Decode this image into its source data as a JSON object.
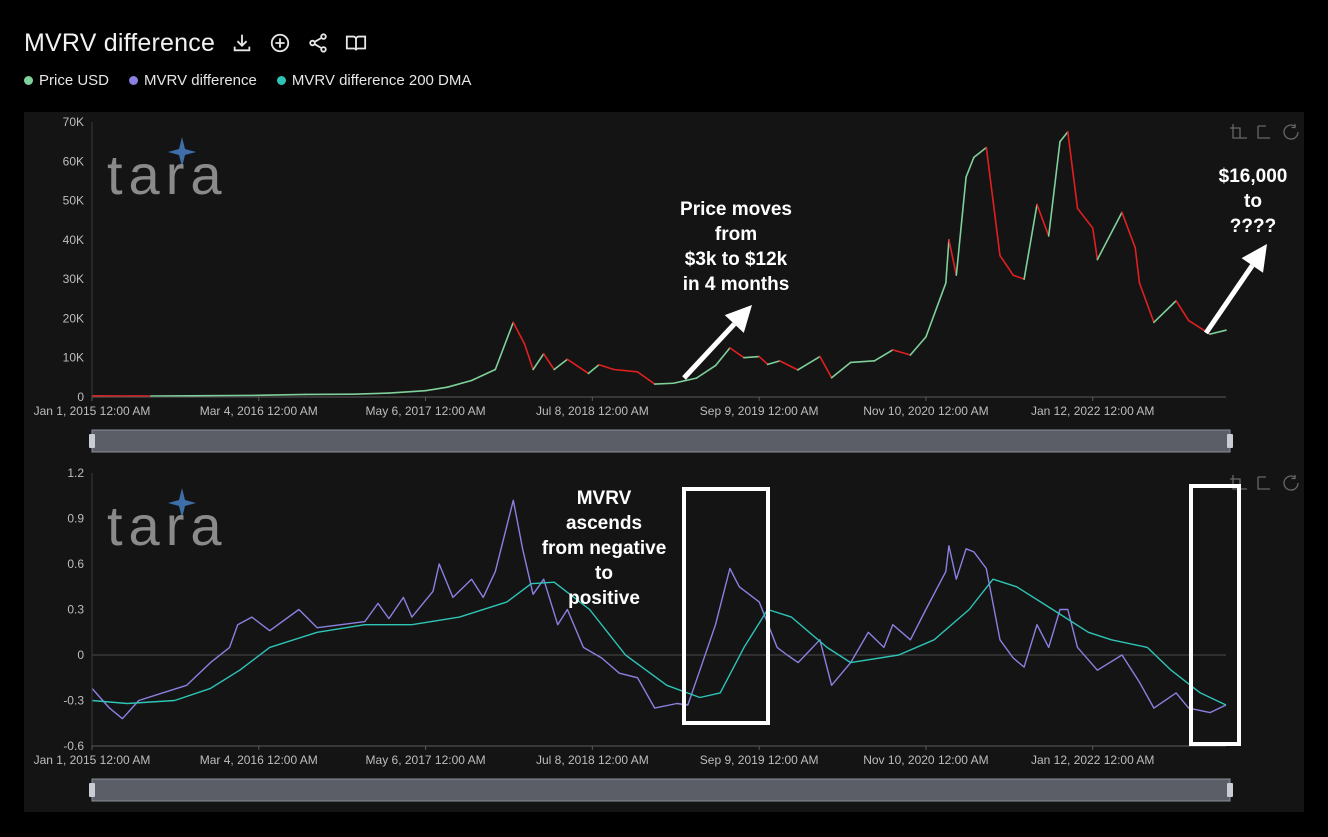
{
  "header": {
    "title": "MVRV difference",
    "tools": [
      {
        "icon": "download-icon"
      },
      {
        "icon": "add-circle-icon"
      },
      {
        "icon": "share-icon"
      },
      {
        "icon": "book-icon"
      }
    ]
  },
  "legend": [
    {
      "label": "Price USD",
      "color": "#7fd09a"
    },
    {
      "label": "MVRV difference",
      "color": "#8a80e0"
    },
    {
      "label": "MVRV difference 200 DMA",
      "color": "#2ec4b6"
    }
  ],
  "watermark": "tara",
  "annotations": {
    "price_move": [
      "Price moves",
      "from",
      "$3k to $12k",
      "in 4 months"
    ],
    "future": [
      "$16,000",
      "to",
      "????"
    ],
    "mvrv": [
      "MVRV",
      "ascends",
      "from negative",
      "to",
      "positive"
    ]
  },
  "chart_data": [
    {
      "type": "line",
      "title": "",
      "ylim": [
        0,
        70000
      ],
      "y_ticks": [
        0,
        10000,
        20000,
        30000,
        40000,
        50000,
        60000,
        70000
      ],
      "y_tick_labels": [
        "0",
        "10K",
        "20K",
        "30K",
        "40K",
        "50K",
        "60K",
        "70K"
      ],
      "x_tick_labels": [
        "Jan 1, 2015 12:00 AM",
        "Mar 4, 2016 12:00 AM",
        "May 6, 2017 12:00 AM",
        "Jul 8, 2018 12:00 AM",
        "Sep 9, 2019 12:00 AM",
        "Nov 10, 2020 12:00 AM",
        "Jan 12, 2022 12:00 AM"
      ],
      "x_tick_dates": [
        "2015-01-01",
        "2016-03-04",
        "2017-05-06",
        "2018-07-08",
        "2019-09-09",
        "2020-11-10",
        "2022-01-12"
      ],
      "x_range": [
        "2015-01-01",
        "2022-12-20"
      ],
      "series": [
        {
          "name": "Price USD",
          "colors": {
            "rising": "#7fd09a",
            "falling": "#e02020"
          },
          "points": [
            [
              "2015-01-01",
              300
            ],
            [
              "2015-06-01",
              230
            ],
            [
              "2015-11-01",
              350
            ],
            [
              "2016-03-01",
              420
            ],
            [
              "2016-07-01",
              650
            ],
            [
              "2016-11-01",
              720
            ],
            [
              "2017-02-01",
              1000
            ],
            [
              "2017-05-06",
              1600
            ],
            [
              "2017-07-01",
              2500
            ],
            [
              "2017-09-01",
              4200
            ],
            [
              "2017-11-01",
              7000
            ],
            [
              "2017-12-17",
              19000
            ],
            [
              "2018-01-15",
              13500
            ],
            [
              "2018-02-06",
              7000
            ],
            [
              "2018-03-05",
              11000
            ],
            [
              "2018-04-01",
              7000
            ],
            [
              "2018-05-05",
              9600
            ],
            [
              "2018-06-28",
              6000
            ],
            [
              "2018-07-25",
              8200
            ],
            [
              "2018-09-01",
              7000
            ],
            [
              "2018-11-01",
              6400
            ],
            [
              "2018-12-15",
              3300
            ],
            [
              "2019-02-01",
              3500
            ],
            [
              "2019-04-01",
              4800
            ],
            [
              "2019-05-20",
              8000
            ],
            [
              "2019-06-26",
              12500
            ],
            [
              "2019-08-01",
              10000
            ],
            [
              "2019-09-09",
              10300
            ],
            [
              "2019-10-01",
              8300
            ],
            [
              "2019-11-01",
              9200
            ],
            [
              "2019-12-17",
              6900
            ],
            [
              "2020-02-12",
              10300
            ],
            [
              "2020-03-13",
              4900
            ],
            [
              "2020-05-01",
              8800
            ],
            [
              "2020-07-01",
              9200
            ],
            [
              "2020-08-17",
              12000
            ],
            [
              "2020-10-01",
              10700
            ],
            [
              "2020-11-10",
              15300
            ],
            [
              "2020-12-31",
              29000
            ],
            [
              "2021-01-08",
              40000
            ],
            [
              "2021-01-27",
              31000
            ],
            [
              "2021-02-21",
              56000
            ],
            [
              "2021-03-13",
              61000
            ],
            [
              "2021-04-14",
              63500
            ],
            [
              "2021-05-19",
              36000
            ],
            [
              "2021-06-22",
              31000
            ],
            [
              "2021-07-20",
              30000
            ],
            [
              "2021-08-22",
              49000
            ],
            [
              "2021-09-21",
              41000
            ],
            [
              "2021-10-20",
              65000
            ],
            [
              "2021-11-09",
              67500
            ],
            [
              "2021-12-04",
              48000
            ],
            [
              "2022-01-12",
              43000
            ],
            [
              "2022-01-24",
              35000
            ],
            [
              "2022-03-28",
              47000
            ],
            [
              "2022-05-01",
              38000
            ],
            [
              "2022-05-12",
              29000
            ],
            [
              "2022-06-18",
              19000
            ],
            [
              "2022-08-14",
              24500
            ],
            [
              "2022-09-15",
              19500
            ],
            [
              "2022-11-09",
              16000
            ],
            [
              "2022-12-20",
              17000
            ]
          ]
        }
      ]
    },
    {
      "type": "line",
      "title": "",
      "ylim": [
        -0.6,
        1.2
      ],
      "y_ticks": [
        -0.6,
        -0.3,
        0,
        0.3,
        0.6,
        0.9,
        1.2
      ],
      "y_tick_labels": [
        "-0.6",
        "-0.3",
        "0",
        "0.3",
        "0.6",
        "0.9",
        "1.2"
      ],
      "x_tick_labels": [
        "Jan 1, 2015 12:00 AM",
        "Mar 4, 2016 12:00 AM",
        "May 6, 2017 12:00 AM",
        "Jul 8, 2018 12:00 AM",
        "Sep 9, 2019 12:00 AM",
        "Nov 10, 2020 12:00 AM",
        "Jan 12, 2022 12:00 AM"
      ],
      "x_tick_dates": [
        "2015-01-01",
        "2016-03-04",
        "2017-05-06",
        "2018-07-08",
        "2019-09-09",
        "2020-11-10",
        "2022-01-12"
      ],
      "x_range": [
        "2015-01-01",
        "2022-12-20"
      ],
      "series": [
        {
          "name": "MVRV difference",
          "color": "#8a80e0",
          "points": [
            [
              "2015-01-01",
              -0.22
            ],
            [
              "2015-02-15",
              -0.35
            ],
            [
              "2015-03-20",
              -0.42
            ],
            [
              "2015-05-01",
              -0.3
            ],
            [
              "2015-07-01",
              -0.25
            ],
            [
              "2015-09-01",
              -0.2
            ],
            [
              "2015-11-01",
              -0.05
            ],
            [
              "2015-12-20",
              0.05
            ],
            [
              "2016-01-10",
              0.2
            ],
            [
              "2016-02-15",
              0.25
            ],
            [
              "2016-04-01",
              0.16
            ],
            [
              "2016-06-15",
              0.3
            ],
            [
              "2016-08-01",
              0.18
            ],
            [
              "2016-10-01",
              0.2
            ],
            [
              "2016-12-01",
              0.22
            ],
            [
              "2017-01-04",
              0.34
            ],
            [
              "2017-02-01",
              0.24
            ],
            [
              "2017-03-10",
              0.38
            ],
            [
              "2017-04-01",
              0.25
            ],
            [
              "2017-05-25",
              0.42
            ],
            [
              "2017-06-10",
              0.6
            ],
            [
              "2017-07-15",
              0.38
            ],
            [
              "2017-09-01",
              0.5
            ],
            [
              "2017-10-01",
              0.38
            ],
            [
              "2017-11-01",
              0.55
            ],
            [
              "2017-12-17",
              1.02
            ],
            [
              "2018-01-10",
              0.7
            ],
            [
              "2018-02-06",
              0.4
            ],
            [
              "2018-03-05",
              0.5
            ],
            [
              "2018-04-10",
              0.2
            ],
            [
              "2018-05-05",
              0.3
            ],
            [
              "2018-06-15",
              0.05
            ],
            [
              "2018-08-01",
              -0.02
            ],
            [
              "2018-09-15",
              -0.12
            ],
            [
              "2018-11-01",
              -0.15
            ],
            [
              "2018-12-15",
              -0.35
            ],
            [
              "2019-02-10",
              -0.32
            ],
            [
              "2019-03-10",
              -0.33
            ],
            [
              "2019-04-10",
              -0.1
            ],
            [
              "2019-05-20",
              0.2
            ],
            [
              "2019-06-26",
              0.57
            ],
            [
              "2019-07-20",
              0.45
            ],
            [
              "2019-09-09",
              0.35
            ],
            [
              "2019-10-25",
              0.05
            ],
            [
              "2019-11-20",
              0.0
            ],
            [
              "2019-12-18",
              -0.05
            ],
            [
              "2020-02-12",
              0.1
            ],
            [
              "2020-03-13",
              -0.2
            ],
            [
              "2020-05-01",
              -0.05
            ],
            [
              "2020-06-15",
              0.15
            ],
            [
              "2020-07-25",
              0.05
            ],
            [
              "2020-08-17",
              0.2
            ],
            [
              "2020-10-01",
              0.1
            ],
            [
              "2020-11-10",
              0.3
            ],
            [
              "2020-12-31",
              0.55
            ],
            [
              "2021-01-08",
              0.72
            ],
            [
              "2021-01-27",
              0.5
            ],
            [
              "2021-02-21",
              0.7
            ],
            [
              "2021-03-13",
              0.68
            ],
            [
              "2021-04-14",
              0.57
            ],
            [
              "2021-05-19",
              0.1
            ],
            [
              "2021-06-22",
              -0.02
            ],
            [
              "2021-07-20",
              -0.08
            ],
            [
              "2021-08-22",
              0.2
            ],
            [
              "2021-09-21",
              0.05
            ],
            [
              "2021-10-20",
              0.3
            ],
            [
              "2021-11-09",
              0.3
            ],
            [
              "2021-12-04",
              0.05
            ],
            [
              "2022-01-24",
              -0.1
            ],
            [
              "2022-03-28",
              0.0
            ],
            [
              "2022-05-12",
              -0.18
            ],
            [
              "2022-06-18",
              -0.35
            ],
            [
              "2022-08-14",
              -0.25
            ],
            [
              "2022-09-15",
              -0.35
            ],
            [
              "2022-11-09",
              -0.38
            ],
            [
              "2022-12-20",
              -0.33
            ]
          ]
        },
        {
          "name": "MVRV difference 200 DMA",
          "color": "#2ec4b6",
          "points": [
            [
              "2015-01-01",
              -0.3
            ],
            [
              "2015-04-01",
              -0.32
            ],
            [
              "2015-08-01",
              -0.3
            ],
            [
              "2015-11-01",
              -0.22
            ],
            [
              "2016-01-15",
              -0.1
            ],
            [
              "2016-04-01",
              0.05
            ],
            [
              "2016-08-01",
              0.15
            ],
            [
              "2016-12-01",
              0.2
            ],
            [
              "2017-04-01",
              0.2
            ],
            [
              "2017-08-01",
              0.25
            ],
            [
              "2017-12-01",
              0.35
            ],
            [
              "2018-02-01",
              0.47
            ],
            [
              "2018-04-01",
              0.48
            ],
            [
              "2018-07-01",
              0.3
            ],
            [
              "2018-10-01",
              0.0
            ],
            [
              "2019-01-15",
              -0.2
            ],
            [
              "2019-04-10",
              -0.28
            ],
            [
              "2019-06-01",
              -0.25
            ],
            [
              "2019-08-01",
              0.05
            ],
            [
              "2019-10-01",
              0.3
            ],
            [
              "2019-12-01",
              0.25
            ],
            [
              "2020-03-01",
              0.05
            ],
            [
              "2020-05-01",
              -0.05
            ],
            [
              "2020-09-01",
              0.0
            ],
            [
              "2020-12-01",
              0.1
            ],
            [
              "2021-03-01",
              0.3
            ],
            [
              "2021-05-01",
              0.5
            ],
            [
              "2021-07-01",
              0.45
            ],
            [
              "2021-10-01",
              0.3
            ],
            [
              "2022-01-01",
              0.15
            ],
            [
              "2022-03-01",
              0.1
            ],
            [
              "2022-06-01",
              0.05
            ],
            [
              "2022-08-01",
              -0.1
            ],
            [
              "2022-10-15",
              -0.25
            ],
            [
              "2022-12-20",
              -0.33
            ]
          ]
        }
      ]
    }
  ]
}
